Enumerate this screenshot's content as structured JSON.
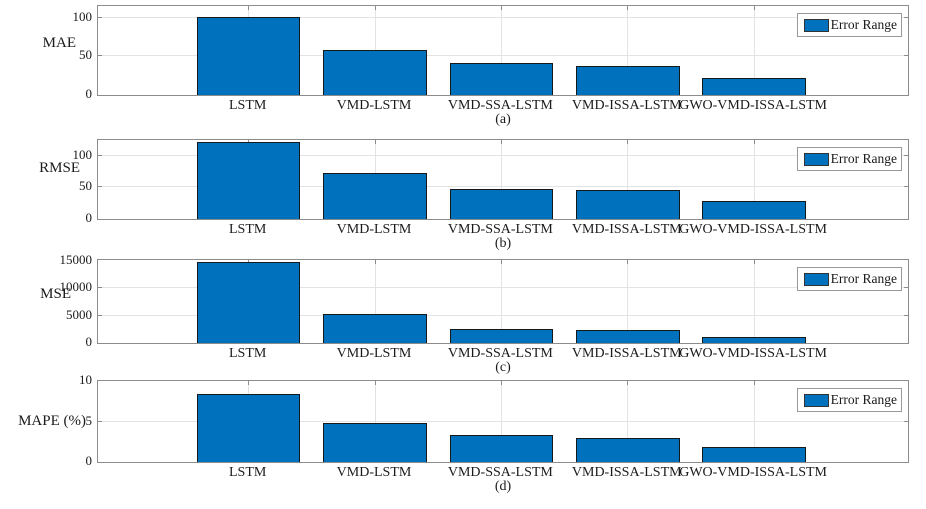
{
  "figure_background": "#ffffff",
  "colors": {
    "bar_fill": "#0072BD",
    "bar_edge": "#16191c",
    "grid": "#e3e3e3",
    "axis_box": "#8c8c8c",
    "text": "#1a1a1a"
  },
  "legend_label": "Error Range",
  "categories": [
    "LSTM",
    "VMD-LSTM",
    "VMD-SSA-LSTM",
    "VMD-ISSA-LSTM",
    "GWO-VMD-ISSA-LSTM"
  ],
  "chart_data": [
    {
      "type": "bar",
      "panel_caption": "(a)",
      "ylabel": "MAE",
      "categories": [
        "LSTM",
        "VMD-LSTM",
        "VMD-SSA-LSTM",
        "VMD-ISSA-LSTM",
        "GWO-VMD-ISSA-LSTM"
      ],
      "values": [
        103,
        60,
        42,
        39,
        23
      ],
      "clipped_at_top": [
        false,
        false,
        false,
        false,
        false
      ],
      "yticks": [
        0,
        50,
        100
      ],
      "ylim": [
        0,
        115
      ],
      "grid": true,
      "legend": "Error Range",
      "legend_position": "upper right",
      "series_color": "#0072BD"
    },
    {
      "type": "bar",
      "panel_caption": "(b)",
      "ylabel": "RMSE",
      "categories": [
        "LSTM",
        "VMD-LSTM",
        "VMD-SSA-LSTM",
        "VMD-ISSA-LSTM",
        "GWO-VMD-ISSA-LSTM"
      ],
      "values": [
        125,
        75,
        49,
        47,
        29
      ],
      "clipped_at_top": [
        true,
        false,
        false,
        false,
        false
      ],
      "yticks": [
        0,
        50,
        100
      ],
      "ylim": [
        0,
        125
      ],
      "grid": true,
      "legend": "Error Range",
      "legend_position": "upper right",
      "series_color": "#0072BD"
    },
    {
      "type": "bar",
      "panel_caption": "(c)",
      "ylabel": "MSE",
      "categories": [
        "LSTM",
        "VMD-LSTM",
        "VMD-SSA-LSTM",
        "VMD-ISSA-LSTM",
        "GWO-VMD-ISSA-LSTM"
      ],
      "values": [
        15100,
        5500,
        2700,
        2400,
        1200
      ],
      "clipped_at_top": [
        true,
        false,
        false,
        false,
        false
      ],
      "yticks": [
        0,
        5000,
        10000,
        15000
      ],
      "ylim": [
        0,
        15100
      ],
      "grid": true,
      "legend": "Error Range",
      "legend_position": "upper right",
      "series_color": "#0072BD"
    },
    {
      "type": "bar",
      "panel_caption": "(d)",
      "ylabel": "MAPE (%)",
      "categories": [
        "LSTM",
        "VMD-LSTM",
        "VMD-SSA-LSTM",
        "VMD-ISSA-LSTM",
        "GWO-VMD-ISSA-LSTM"
      ],
      "values": [
        8.6,
        4.9,
        3.4,
        3.1,
        1.9
      ],
      "clipped_at_top": [
        false,
        false,
        false,
        false,
        false
      ],
      "yticks": [
        0,
        5,
        10
      ],
      "ylim": [
        0,
        10
      ],
      "grid": true,
      "legend": "Error Range",
      "legend_position": "upper right",
      "series_color": "#0072BD"
    }
  ]
}
